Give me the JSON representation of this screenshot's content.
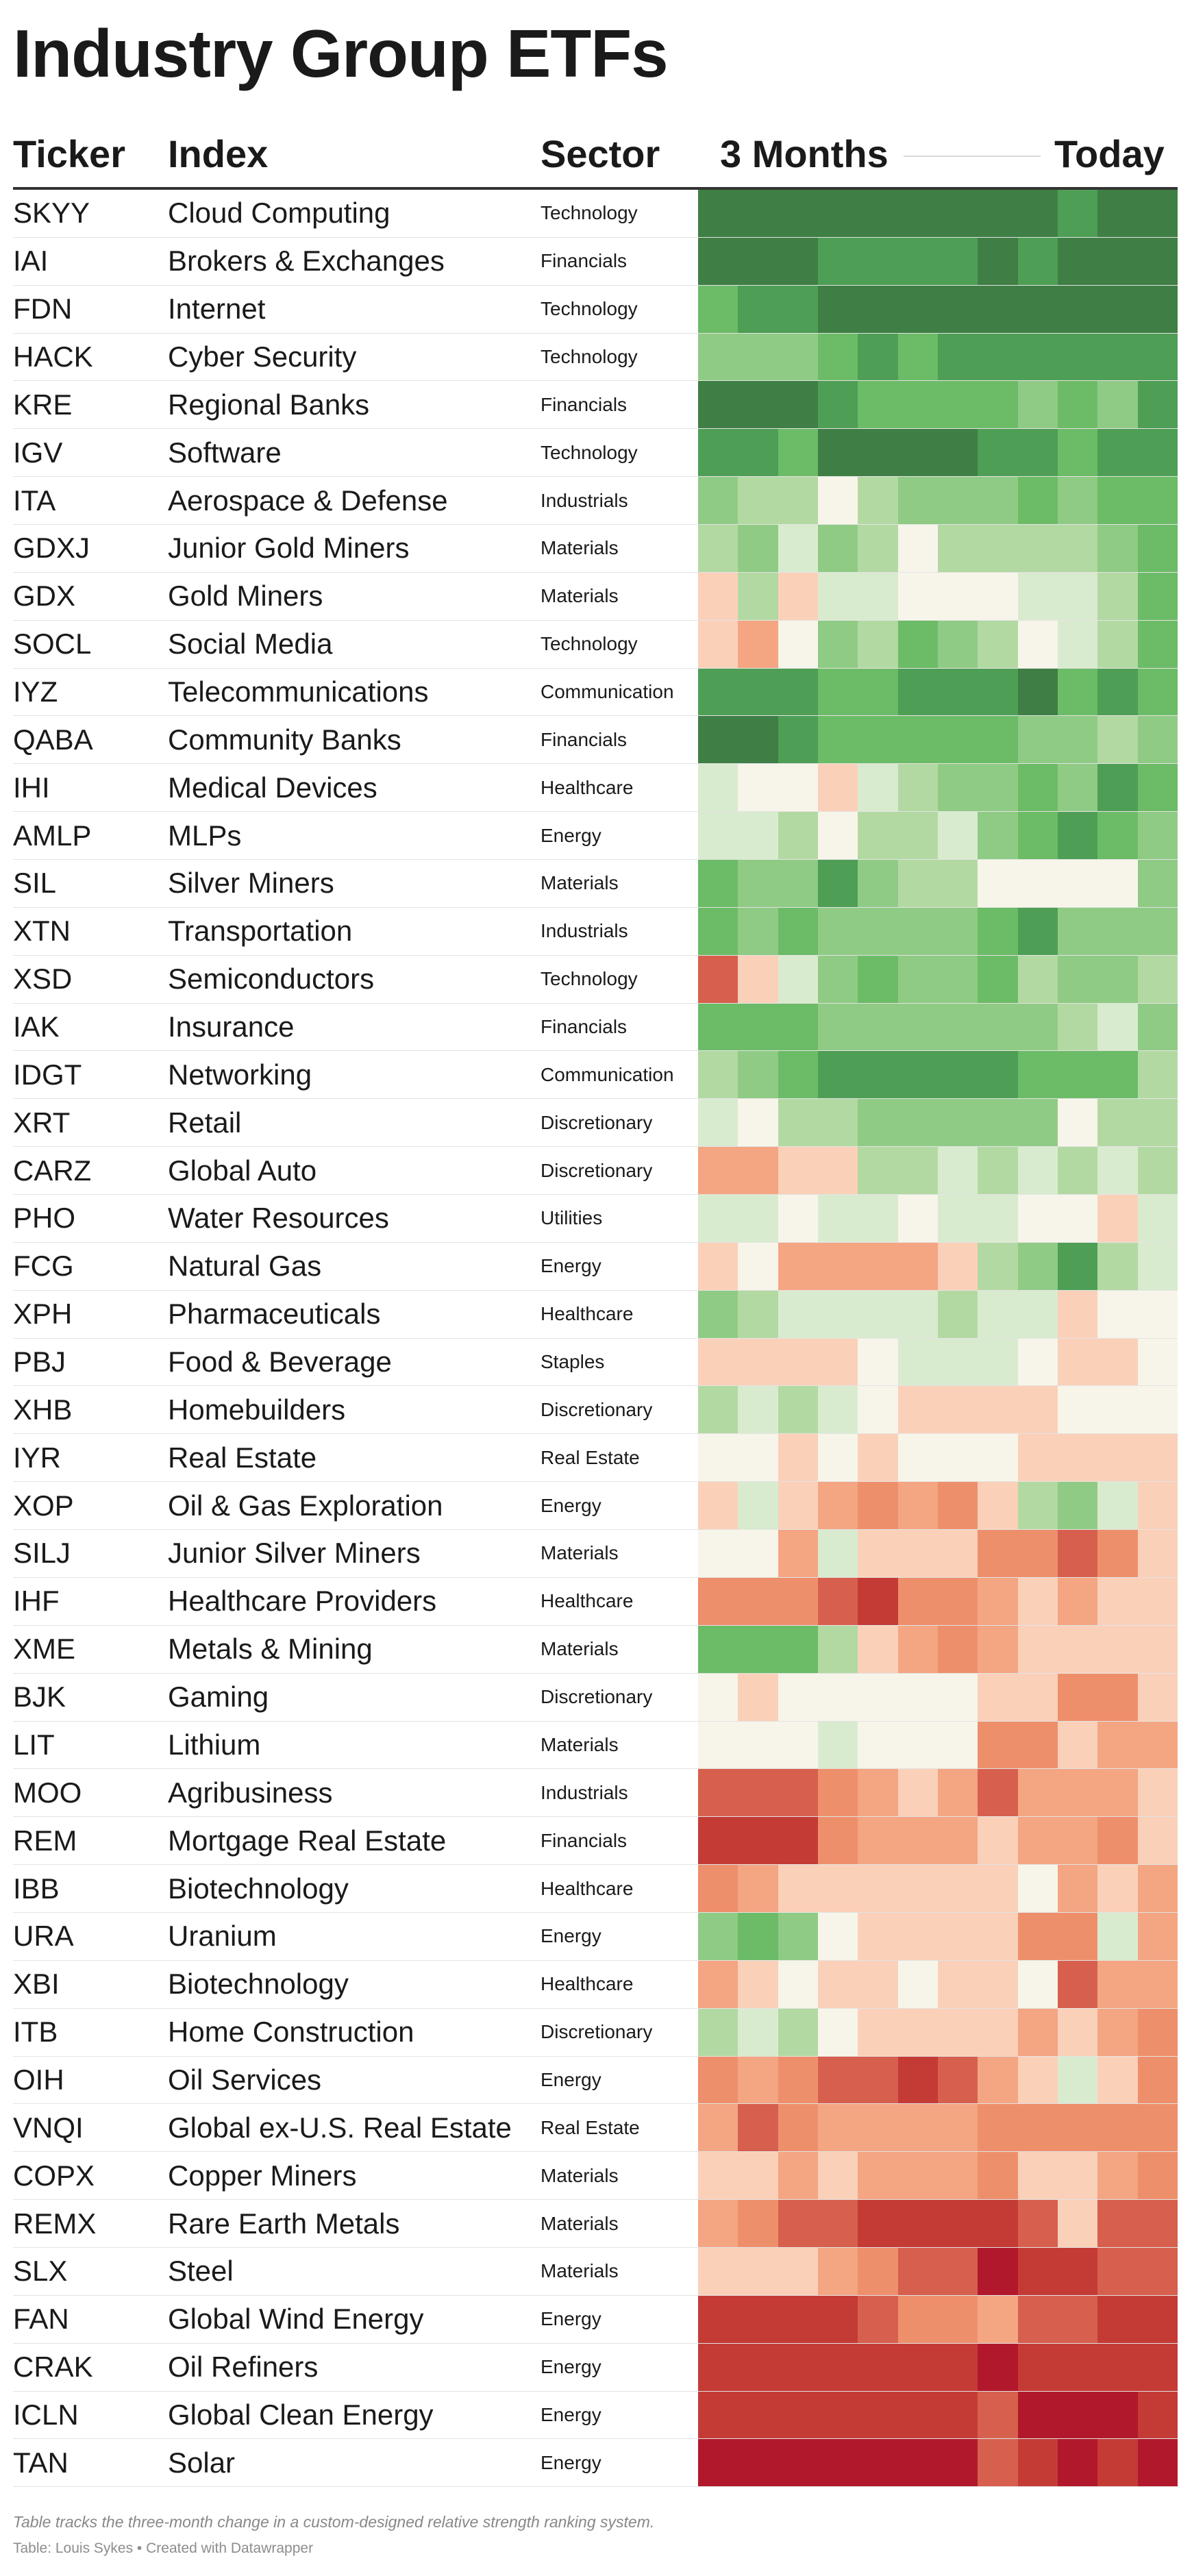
{
  "title": "Industry Group ETFs",
  "headers": {
    "ticker": "Ticker",
    "index": "Index",
    "sector": "Sector",
    "months": "3 Months",
    "today": "Today"
  },
  "palette": {
    "-6": "#b2182b",
    "-5": "#c43b36",
    "-4": "#d6604d",
    "-3": "#ee8f6c",
    "-2": "#f4a582",
    "-1": "#fbd0b9",
    "0": "#f7f5ea",
    "1": "#d9ebcf",
    "2": "#b3d9a3",
    "3": "#8fcb84",
    "4": "#6cbb67",
    "5": "#4e9e55",
    "6": "#3f7f45"
  },
  "chart_data": {
    "type": "heatmap",
    "title": "Industry Group ETFs",
    "columns": [
      "Ticker",
      "Index",
      "Sector",
      "3 Months",
      "Today"
    ],
    "value_scale": "relative strength rank change, -6 (red) to +6 (green)",
    "rows": [
      {
        "ticker": "SKYY",
        "index": "Cloud Computing",
        "sector": "Technology",
        "values": [
          6,
          6,
          6,
          6,
          6,
          6,
          6,
          6,
          6,
          5,
          6,
          6
        ]
      },
      {
        "ticker": "IAI",
        "index": "Brokers & Exchanges",
        "sector": "Financials",
        "values": [
          6,
          6,
          6,
          5,
          5,
          5,
          5,
          6,
          5,
          6,
          6,
          6
        ]
      },
      {
        "ticker": "FDN",
        "index": "Internet",
        "sector": "Technology",
        "values": [
          4,
          5,
          5,
          6,
          6,
          6,
          6,
          6,
          6,
          6,
          6,
          6
        ]
      },
      {
        "ticker": "HACK",
        "index": "Cyber Security",
        "sector": "Technology",
        "values": [
          3,
          3,
          3,
          4,
          5,
          4,
          5,
          5,
          5,
          5,
          5,
          5
        ]
      },
      {
        "ticker": "KRE",
        "index": "Regional Banks",
        "sector": "Financials",
        "values": [
          6,
          6,
          6,
          5,
          4,
          4,
          4,
          4,
          3,
          4,
          3,
          5
        ]
      },
      {
        "ticker": "IGV",
        "index": "Software",
        "sector": "Technology",
        "values": [
          5,
          5,
          4,
          6,
          6,
          6,
          6,
          5,
          5,
          4,
          5,
          5
        ]
      },
      {
        "ticker": "ITA",
        "index": "Aerospace & Defense",
        "sector": "Industrials",
        "values": [
          3,
          2,
          2,
          0,
          2,
          3,
          3,
          3,
          4,
          3,
          4,
          4
        ]
      },
      {
        "ticker": "GDXJ",
        "index": "Junior Gold Miners",
        "sector": "Materials",
        "values": [
          2,
          3,
          1,
          3,
          2,
          0,
          2,
          2,
          2,
          2,
          3,
          4
        ]
      },
      {
        "ticker": "GDX",
        "index": "Gold Miners",
        "sector": "Materials",
        "values": [
          -1,
          2,
          -1,
          1,
          1,
          0,
          0,
          0,
          1,
          1,
          2,
          4
        ]
      },
      {
        "ticker": "SOCL",
        "index": "Social Media",
        "sector": "Technology",
        "values": [
          -1,
          -2,
          0,
          3,
          2,
          4,
          3,
          2,
          0,
          1,
          2,
          4
        ]
      },
      {
        "ticker": "IYZ",
        "index": "Telecommunications",
        "sector": "Communication",
        "values": [
          5,
          5,
          5,
          4,
          4,
          5,
          5,
          5,
          6,
          4,
          5,
          4
        ]
      },
      {
        "ticker": "QABA",
        "index": "Community Banks",
        "sector": "Financials",
        "values": [
          6,
          6,
          5,
          4,
          4,
          4,
          4,
          4,
          3,
          3,
          2,
          3
        ]
      },
      {
        "ticker": "IHI",
        "index": "Medical Devices",
        "sector": "Healthcare",
        "values": [
          1,
          0,
          0,
          -1,
          1,
          2,
          3,
          3,
          4,
          3,
          5,
          4
        ]
      },
      {
        "ticker": "AMLP",
        "index": "MLPs",
        "sector": "Energy",
        "values": [
          1,
          1,
          2,
          0,
          2,
          2,
          1,
          3,
          4,
          5,
          4,
          3
        ]
      },
      {
        "ticker": "SIL",
        "index": "Silver Miners",
        "sector": "Materials",
        "values": [
          4,
          3,
          3,
          5,
          3,
          2,
          2,
          0,
          0,
          0,
          0,
          3
        ]
      },
      {
        "ticker": "XTN",
        "index": "Transportation",
        "sector": "Industrials",
        "values": [
          4,
          3,
          4,
          3,
          3,
          3,
          3,
          4,
          5,
          3,
          3,
          3
        ]
      },
      {
        "ticker": "XSD",
        "index": "Semiconductors",
        "sector": "Technology",
        "values": [
          -4,
          -1,
          1,
          3,
          4,
          3,
          3,
          4,
          2,
          3,
          3,
          2
        ]
      },
      {
        "ticker": "IAK",
        "index": "Insurance",
        "sector": "Financials",
        "values": [
          4,
          4,
          4,
          3,
          3,
          3,
          3,
          3,
          3,
          2,
          1,
          3
        ]
      },
      {
        "ticker": "IDGT",
        "index": "Networking",
        "sector": "Communication",
        "values": [
          2,
          3,
          4,
          5,
          5,
          5,
          5,
          5,
          4,
          4,
          4,
          2
        ]
      },
      {
        "ticker": "XRT",
        "index": "Retail",
        "sector": "Discretionary",
        "values": [
          1,
          0,
          2,
          2,
          3,
          3,
          3,
          3,
          3,
          0,
          2,
          2
        ]
      },
      {
        "ticker": "CARZ",
        "index": "Global Auto",
        "sector": "Discretionary",
        "values": [
          -2,
          -2,
          -1,
          -1,
          2,
          2,
          1,
          2,
          1,
          2,
          1,
          2
        ]
      },
      {
        "ticker": "PHO",
        "index": "Water Resources",
        "sector": "Utilities",
        "values": [
          1,
          1,
          0,
          1,
          1,
          0,
          1,
          1,
          0,
          0,
          -1,
          1
        ]
      },
      {
        "ticker": "FCG",
        "index": "Natural Gas",
        "sector": "Energy",
        "values": [
          -1,
          0,
          -2,
          -2,
          -2,
          -2,
          -1,
          2,
          3,
          5,
          2,
          1
        ]
      },
      {
        "ticker": "XPH",
        "index": "Pharmaceuticals",
        "sector": "Healthcare",
        "values": [
          3,
          2,
          1,
          1,
          1,
          1,
          2,
          1,
          1,
          -1,
          0,
          0
        ]
      },
      {
        "ticker": "PBJ",
        "index": "Food & Beverage",
        "sector": "Staples",
        "values": [
          -1,
          -1,
          -1,
          -1,
          0,
          1,
          1,
          1,
          0,
          -1,
          -1,
          0
        ]
      },
      {
        "ticker": "XHB",
        "index": "Homebuilders",
        "sector": "Discretionary",
        "values": [
          2,
          1,
          2,
          1,
          0,
          -1,
          -1,
          -1,
          -1,
          0,
          0,
          0
        ]
      },
      {
        "ticker": "IYR",
        "index": "Real Estate",
        "sector": "Real Estate",
        "values": [
          0,
          0,
          -1,
          0,
          -1,
          0,
          0,
          0,
          -1,
          -1,
          -1,
          -1
        ]
      },
      {
        "ticker": "XOP",
        "index": "Oil & Gas Exploration",
        "sector": "Energy",
        "values": [
          -1,
          1,
          -1,
          -2,
          -3,
          -2,
          -3,
          -1,
          2,
          3,
          1,
          -1
        ]
      },
      {
        "ticker": "SILJ",
        "index": "Junior Silver Miners",
        "sector": "Materials",
        "values": [
          0,
          0,
          -2,
          1,
          -1,
          -1,
          -1,
          -3,
          -3,
          -4,
          -3,
          -1
        ]
      },
      {
        "ticker": "IHF",
        "index": "Healthcare Providers",
        "sector": "Healthcare",
        "values": [
          -3,
          -3,
          -3,
          -4,
          -5,
          -3,
          -3,
          -2,
          -1,
          -2,
          -1,
          -1
        ]
      },
      {
        "ticker": "XME",
        "index": "Metals & Mining",
        "sector": "Materials",
        "values": [
          4,
          4,
          4,
          2,
          -1,
          -2,
          -3,
          -2,
          -1,
          -1,
          -1,
          -1
        ]
      },
      {
        "ticker": "BJK",
        "index": "Gaming",
        "sector": "Discretionary",
        "values": [
          0,
          -1,
          0,
          0,
          0,
          0,
          0,
          -1,
          -1,
          -3,
          -3,
          -1
        ]
      },
      {
        "ticker": "LIT",
        "index": "Lithium",
        "sector": "Materials",
        "values": [
          0,
          0,
          0,
          1,
          0,
          0,
          0,
          -3,
          -3,
          -1,
          -2,
          -2
        ]
      },
      {
        "ticker": "MOO",
        "index": "Agribusiness",
        "sector": "Industrials",
        "values": [
          -4,
          -4,
          -4,
          -3,
          -2,
          -1,
          -2,
          -4,
          -2,
          -2,
          -2,
          -1
        ]
      },
      {
        "ticker": "REM",
        "index": "Mortgage Real Estate",
        "sector": "Financials",
        "values": [
          -5,
          -5,
          -5,
          -3,
          -2,
          -2,
          -2,
          -1,
          -2,
          -2,
          -3,
          -1
        ]
      },
      {
        "ticker": "IBB",
        "index": "Biotechnology",
        "sector": "Healthcare",
        "values": [
          -3,
          -2,
          -1,
          -1,
          -1,
          -1,
          -1,
          -1,
          0,
          -2,
          -1,
          -2
        ]
      },
      {
        "ticker": "URA",
        "index": "Uranium",
        "sector": "Energy",
        "values": [
          3,
          4,
          3,
          0,
          -1,
          -1,
          -1,
          -1,
          -3,
          -3,
          1,
          -2
        ]
      },
      {
        "ticker": "XBI",
        "index": "Biotechnology",
        "sector": "Healthcare",
        "values": [
          -2,
          -1,
          0,
          -1,
          -1,
          0,
          -1,
          -1,
          0,
          -4,
          -2,
          -2
        ]
      },
      {
        "ticker": "ITB",
        "index": "Home Construction",
        "sector": "Discretionary",
        "values": [
          2,
          1,
          2,
          0,
          -1,
          -1,
          -1,
          -1,
          -2,
          -1,
          -2,
          -3
        ]
      },
      {
        "ticker": "OIH",
        "index": "Oil Services",
        "sector": "Energy",
        "values": [
          -3,
          -2,
          -3,
          -4,
          -4,
          -5,
          -4,
          -2,
          -1,
          1,
          -1,
          -3
        ]
      },
      {
        "ticker": "VNQI",
        "index": "Global ex-U.S. Real Estate",
        "sector": "Real Estate",
        "values": [
          -2,
          -4,
          -3,
          -2,
          -2,
          -2,
          -2,
          -3,
          -3,
          -3,
          -3,
          -3
        ]
      },
      {
        "ticker": "COPX",
        "index": "Copper Miners",
        "sector": "Materials",
        "values": [
          -1,
          -1,
          -2,
          -1,
          -2,
          -2,
          -2,
          -3,
          -1,
          -1,
          -2,
          -3
        ]
      },
      {
        "ticker": "REMX",
        "index": "Rare Earth Metals",
        "sector": "Materials",
        "values": [
          -2,
          -3,
          -4,
          -4,
          -5,
          -5,
          -5,
          -5,
          -4,
          -1,
          -4,
          -4
        ]
      },
      {
        "ticker": "SLX",
        "index": "Steel",
        "sector": "Materials",
        "values": [
          -1,
          -1,
          -1,
          -2,
          -3,
          -4,
          -4,
          -6,
          -5,
          -5,
          -4,
          -4
        ]
      },
      {
        "ticker": "FAN",
        "index": "Global Wind Energy",
        "sector": "Energy",
        "values": [
          -5,
          -5,
          -5,
          -5,
          -4,
          -3,
          -3,
          -2,
          -4,
          -4,
          -5,
          -5
        ]
      },
      {
        "ticker": "CRAK",
        "index": "Oil Refiners",
        "sector": "Energy",
        "values": [
          -5,
          -5,
          -5,
          -5,
          -5,
          -5,
          -5,
          -6,
          -5,
          -5,
          -5,
          -5
        ]
      },
      {
        "ticker": "ICLN",
        "index": "Global Clean Energy",
        "sector": "Energy",
        "values": [
          -5,
          -5,
          -5,
          -5,
          -5,
          -5,
          -5,
          -4,
          -6,
          -6,
          -6,
          -5
        ]
      },
      {
        "ticker": "TAN",
        "index": "Solar",
        "sector": "Energy",
        "values": [
          -6,
          -6,
          -6,
          -6,
          -6,
          -6,
          -6,
          -4,
          -5,
          -6,
          -5,
          -6
        ]
      }
    ]
  },
  "footer": {
    "note": "Table tracks the three-month change in a custom-designed relative strength ranking system.",
    "source": "Table: Louis Sykes • Created with Datawrapper"
  }
}
